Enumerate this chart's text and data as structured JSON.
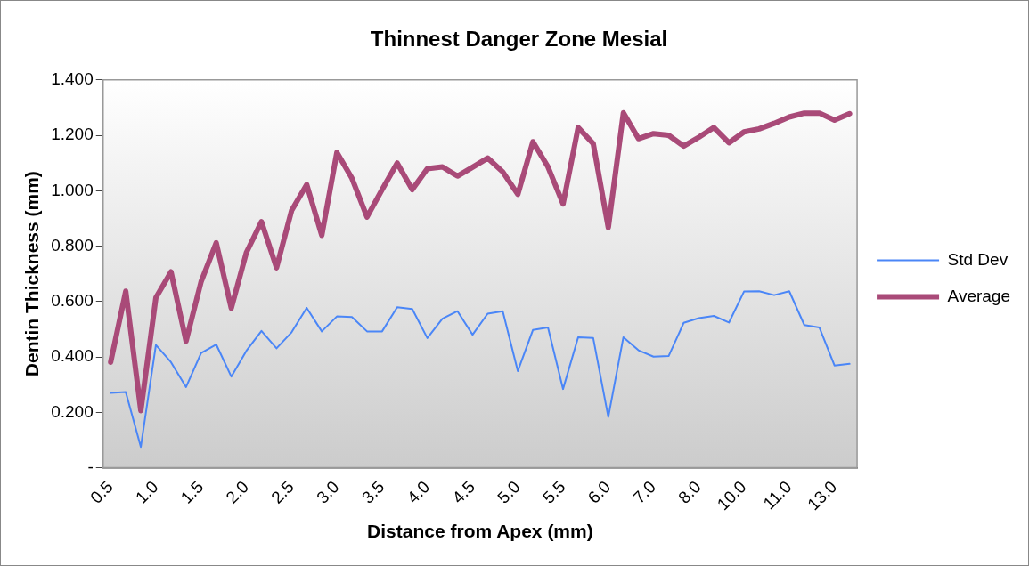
{
  "chart_data": {
    "type": "line",
    "title": "Thinnest Danger Zone Mesial",
    "xlabel": "Distance from Apex (mm)",
    "ylabel": "Dentin Thickness (mm)",
    "categories": [
      "0.5",
      null,
      null,
      "1.0",
      null,
      null,
      "1.5",
      null,
      null,
      "2.0",
      null,
      null,
      "2.5",
      null,
      null,
      "3.0",
      null,
      null,
      "3.5",
      null,
      null,
      "4.0",
      null,
      null,
      "4.5",
      null,
      null,
      "5.0",
      null,
      null,
      "5.5",
      null,
      null,
      "6.0",
      null,
      null,
      "7.0",
      null,
      null,
      "8.0",
      null,
      null,
      "10.0",
      null,
      null,
      "11.0",
      null,
      null,
      "13.0",
      null
    ],
    "series": [
      {
        "name": "Std Dev",
        "color": "#4a86f7",
        "values": [
          0.27,
          0.273,
          0.075,
          0.443,
          0.381,
          0.291,
          0.414,
          0.445,
          0.329,
          0.422,
          0.494,
          0.431,
          0.489,
          0.577,
          0.492,
          0.546,
          0.544,
          0.492,
          0.492,
          0.579,
          0.573,
          0.468,
          0.538,
          0.565,
          0.48,
          0.556,
          0.565,
          0.349,
          0.497,
          0.506,
          0.284,
          0.471,
          0.468,
          0.183,
          0.471,
          0.424,
          0.401,
          0.403,
          0.523,
          0.54,
          0.548,
          0.524,
          0.636,
          0.637,
          0.623,
          0.637,
          0.515,
          0.506,
          0.369,
          0.375
        ]
      },
      {
        "name": "Average",
        "color": "#a94a78",
        "values": [
          0.381,
          0.637,
          0.206,
          0.614,
          0.707,
          0.457,
          0.672,
          0.812,
          0.576,
          0.777,
          0.888,
          0.722,
          0.929,
          1.022,
          0.839,
          1.138,
          1.045,
          0.905,
          1.004,
          1.1,
          1.004,
          1.08,
          1.086,
          1.053,
          1.085,
          1.118,
          1.068,
          0.987,
          1.177,
          1.086,
          0.952,
          1.228,
          1.17,
          0.867,
          1.281,
          1.188,
          1.206,
          1.2,
          1.161,
          1.193,
          1.228,
          1.173,
          1.212,
          1.223,
          1.243,
          1.266,
          1.28,
          1.28,
          1.255,
          1.278
        ]
      }
    ],
    "ylim": [
      0,
      1.4
    ],
    "yticks": [
      {
        "value": 0,
        "label": "-"
      },
      {
        "value": 0.2,
        "label": "0.200"
      },
      {
        "value": 0.4,
        "label": "0.400"
      },
      {
        "value": 0.6,
        "label": "0.600"
      },
      {
        "value": 0.8,
        "label": "0.800"
      },
      {
        "value": 1.0,
        "label": "1.000"
      },
      {
        "value": 1.2,
        "label": "1.200"
      },
      {
        "value": 1.4,
        "label": "1.400"
      }
    ],
    "grid": false,
    "legend": "right",
    "marker": "none",
    "line_style": "solid"
  }
}
